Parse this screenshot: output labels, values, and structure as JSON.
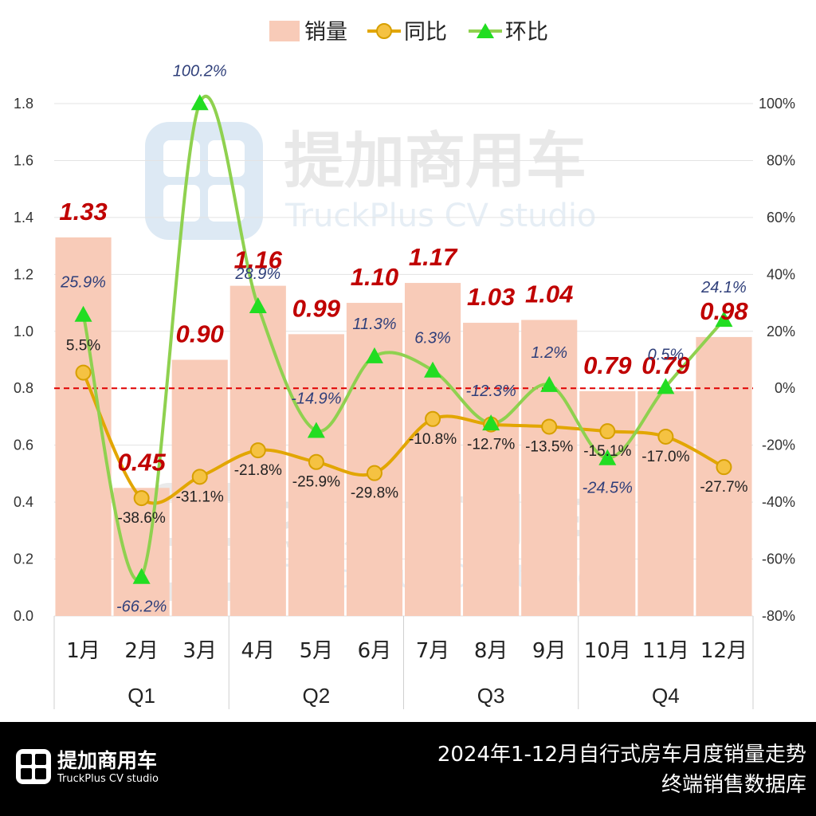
{
  "chart_data": {
    "type": "bar",
    "categories": [
      "1月",
      "2月",
      "3月",
      "4月",
      "5月",
      "6月",
      "7月",
      "8月",
      "9月",
      "10月",
      "11月",
      "12月"
    ],
    "groups": [
      {
        "label": "Q1",
        "count": 3
      },
      {
        "label": "Q2",
        "count": 3
      },
      {
        "label": "Q3",
        "count": 3
      },
      {
        "label": "Q4",
        "count": 3
      }
    ],
    "series": [
      {
        "name": "销量",
        "type": "bar",
        "axis": "left",
        "values": [
          1.33,
          0.45,
          0.9,
          1.16,
          0.99,
          1.1,
          1.17,
          1.03,
          1.04,
          0.79,
          0.79,
          0.98
        ],
        "labels": [
          "1.33",
          "0.45",
          "0.90",
          "1.16",
          "0.99",
          "1.10",
          "1.17",
          "1.03",
          "1.04",
          "0.79",
          "0.79",
          "0.98"
        ]
      },
      {
        "name": "同比",
        "type": "line",
        "axis": "right",
        "values": [
          5.5,
          -38.6,
          -31.1,
          -21.8,
          -25.9,
          -29.8,
          -10.8,
          -12.7,
          -13.5,
          -15.1,
          -17.0,
          -27.7
        ],
        "labels": [
          "5.5%",
          "-38.6%",
          "-31.1%",
          "-21.8%",
          "-25.9%",
          "-29.8%",
          "-10.8%",
          "-12.7%",
          "-13.5%",
          "-15.1%",
          "-17.0%",
          "-27.7%"
        ]
      },
      {
        "name": "环比",
        "type": "line",
        "axis": "right",
        "values": [
          25.9,
          -66.2,
          100.2,
          28.9,
          -14.9,
          11.3,
          6.3,
          -12.3,
          1.2,
          -24.5,
          0.5,
          24.1
        ],
        "labels": [
          "25.9%",
          "-66.2%",
          "100.2%",
          "28.9%",
          "-14.9%",
          "11.3%",
          "6.3%",
          "-12.3%",
          "1.2%",
          "-24.5%",
          "0.5%",
          "24.1%"
        ]
      }
    ],
    "left_axis": {
      "min": 0,
      "max": 1.8,
      "ticks": [
        "0.0",
        "0.2",
        "0.4",
        "0.6",
        "0.8",
        "1.0",
        "1.2",
        "1.4",
        "1.6",
        "1.8"
      ]
    },
    "right_axis": {
      "min": -80,
      "max": 100,
      "ticks": [
        "-80%",
        "-60%",
        "-40%",
        "-20%",
        "0%",
        "20%",
        "40%",
        "60%",
        "80%",
        "100%"
      ]
    },
    "reference_line": {
      "axis": "right",
      "value": 0
    },
    "legend_position": "top-center",
    "colors": {
      "bar": "#f8cbb8",
      "yoy": "#e2a600",
      "yoy_marker": "#f5c242",
      "mom": "#8fd14f",
      "mom_marker": "#22dd22",
      "sales_label": "#c00000",
      "mom_label": "#2f3f7a",
      "ref_line": "#e00000"
    }
  },
  "watermark": {
    "cn": "提加商用车",
    "en": "TruckPlus CV studio"
  },
  "footer": {
    "logo_cn": "提加商用车",
    "logo_en": "TruckPlus CV studio",
    "title_line1": "2024年1-12月自行式房车月度销量走势",
    "title_line2": "终端销售数据库"
  }
}
